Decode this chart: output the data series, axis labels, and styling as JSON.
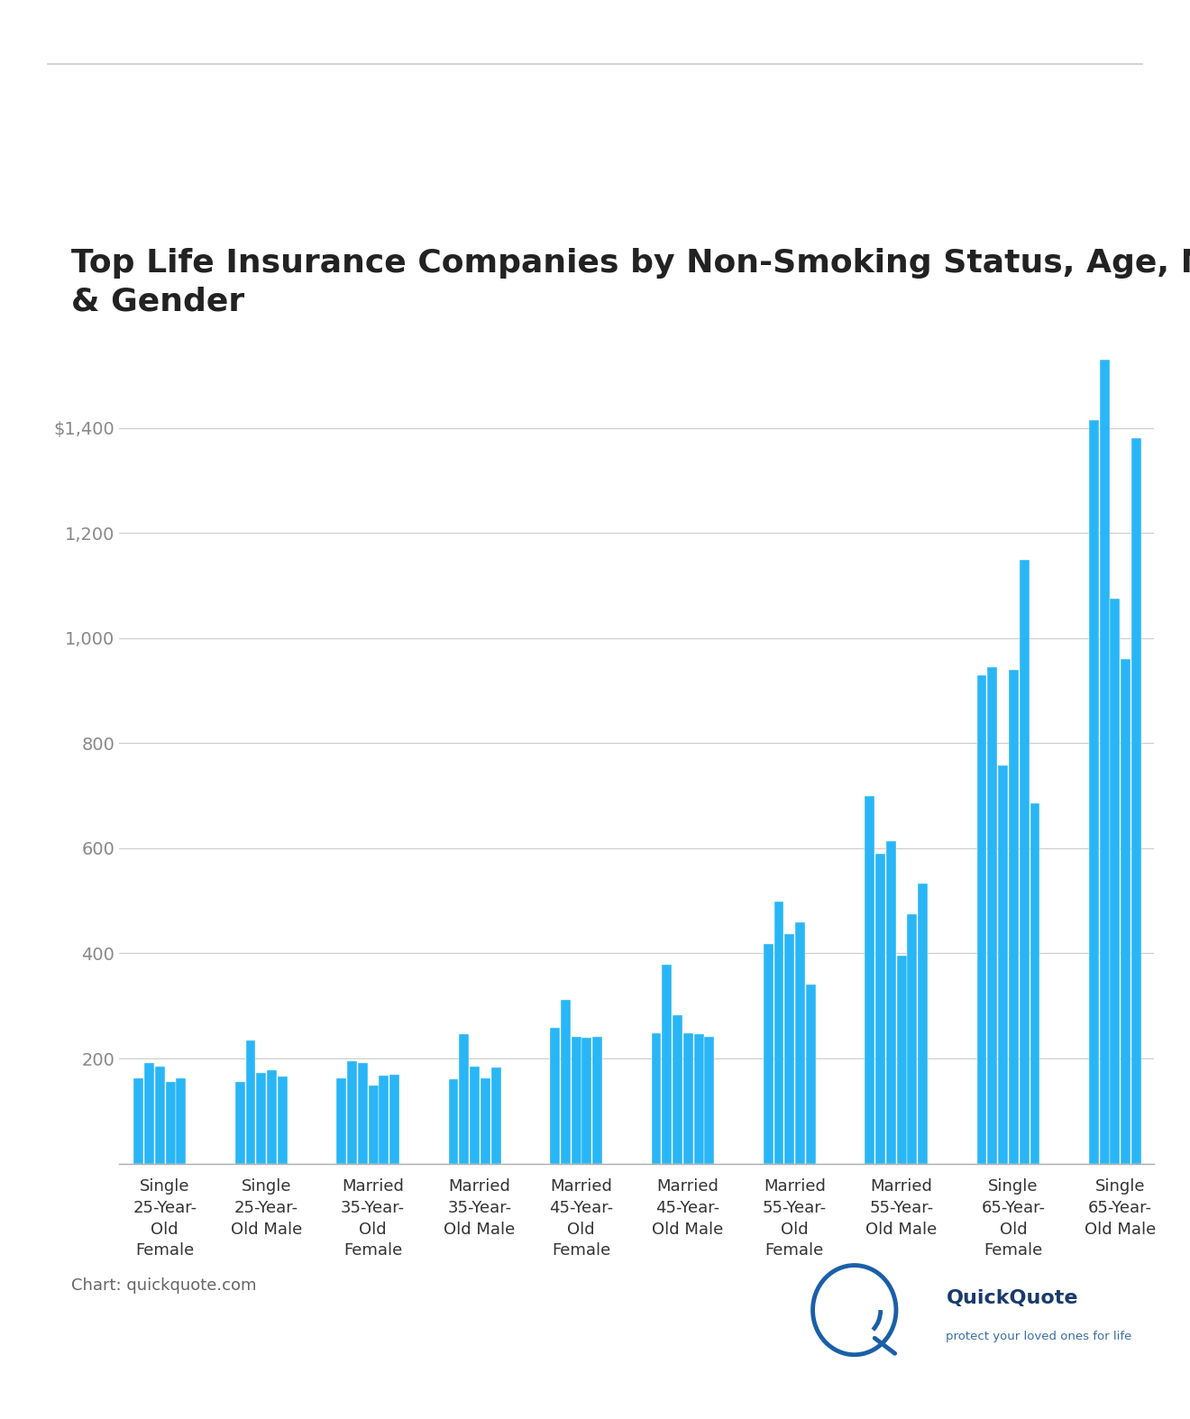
{
  "title": "Top Life Insurance Companies by Non-Smoking Status, Age, Marital Status\n& Gender",
  "bar_color": "#29b6f6",
  "background_color": "#ffffff",
  "grid_color": "#cccccc",
  "categories": [
    "Single\n25-Year-\nOld\nFemale",
    "Single\n25-Year-\nOld Male",
    "Married\n35-Year-\nOld\nFemale",
    "Married\n35-Year-\nOld Male",
    "Married\n45-Year-\nOld\nFemale",
    "Married\n45-Year-\nOld Male",
    "Married\n55-Year-\nOld\nFemale",
    "Married\n55-Year-\nOld Male",
    "Single\n65-Year-\nOld\nFemale",
    "Single\n65-Year-\nOld Male"
  ],
  "groups": [
    [
      163,
      192,
      185,
      155,
      162
    ],
    [
      155,
      235,
      173,
      178,
      165
    ],
    [
      163,
      195,
      192,
      148,
      168,
      170
    ],
    [
      160,
      247,
      185,
      162,
      183
    ],
    [
      258,
      312,
      242,
      240,
      242
    ],
    [
      248,
      378,
      283,
      248,
      246,
      242
    ],
    [
      418,
      498,
      437,
      460,
      340
    ],
    [
      700,
      590,
      614,
      395,
      475,
      533
    ],
    [
      930,
      945,
      758,
      940,
      1148,
      685
    ],
    [
      1415,
      1530,
      1075,
      960,
      1380
    ]
  ],
  "yticks": [
    200,
    400,
    600,
    800,
    1000,
    1200,
    1400
  ],
  "ytick_labels": [
    "200",
    "400",
    "600",
    "800",
    "1,000",
    "1,200",
    "$1,400"
  ],
  "ylim": [
    0,
    1620
  ],
  "source_text": "Chart: quickquote.com",
  "title_fontsize": 26,
  "tick_fontsize": 14,
  "source_fontsize": 13
}
